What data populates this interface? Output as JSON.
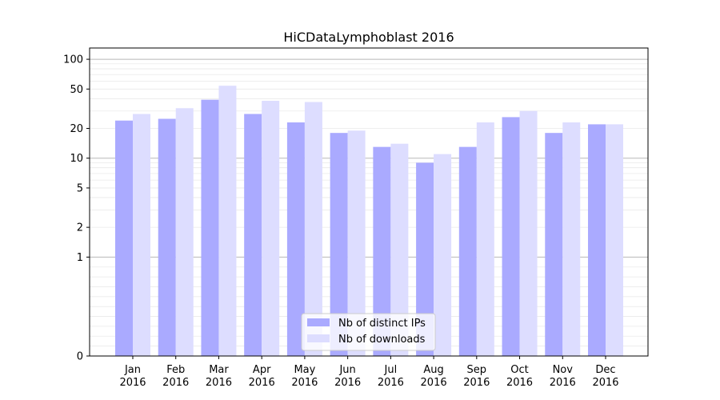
{
  "chart_data": {
    "type": "bar",
    "title": "HiCDataLymphoblast 2016",
    "xlabel": "",
    "ylabel": "",
    "yscale": "symlog",
    "ylim": [
      0,
      130
    ],
    "yticks": [
      0,
      1,
      2,
      5,
      10,
      20,
      50,
      100
    ],
    "categories": [
      [
        "Jan",
        "2016"
      ],
      [
        "Feb",
        "2016"
      ],
      [
        "Mar",
        "2016"
      ],
      [
        "Apr",
        "2016"
      ],
      [
        "May",
        "2016"
      ],
      [
        "Jun",
        "2016"
      ],
      [
        "Jul",
        "2016"
      ],
      [
        "Aug",
        "2016"
      ],
      [
        "Sep",
        "2016"
      ],
      [
        "Oct",
        "2016"
      ],
      [
        "Nov",
        "2016"
      ],
      [
        "Dec",
        "2016"
      ]
    ],
    "series": [
      {
        "name": "Nb of distinct IPs",
        "color": "#aaaaff",
        "values": [
          24,
          25,
          39,
          28,
          23,
          18,
          13,
          9,
          13,
          26,
          18,
          22
        ]
      },
      {
        "name": "Nb of downloads",
        "color": "#ddddff",
        "values": [
          28,
          32,
          54,
          38,
          37,
          19,
          14,
          11,
          23,
          30,
          23,
          22
        ]
      }
    ],
    "legend_position": "bottom-center",
    "grid": true
  }
}
